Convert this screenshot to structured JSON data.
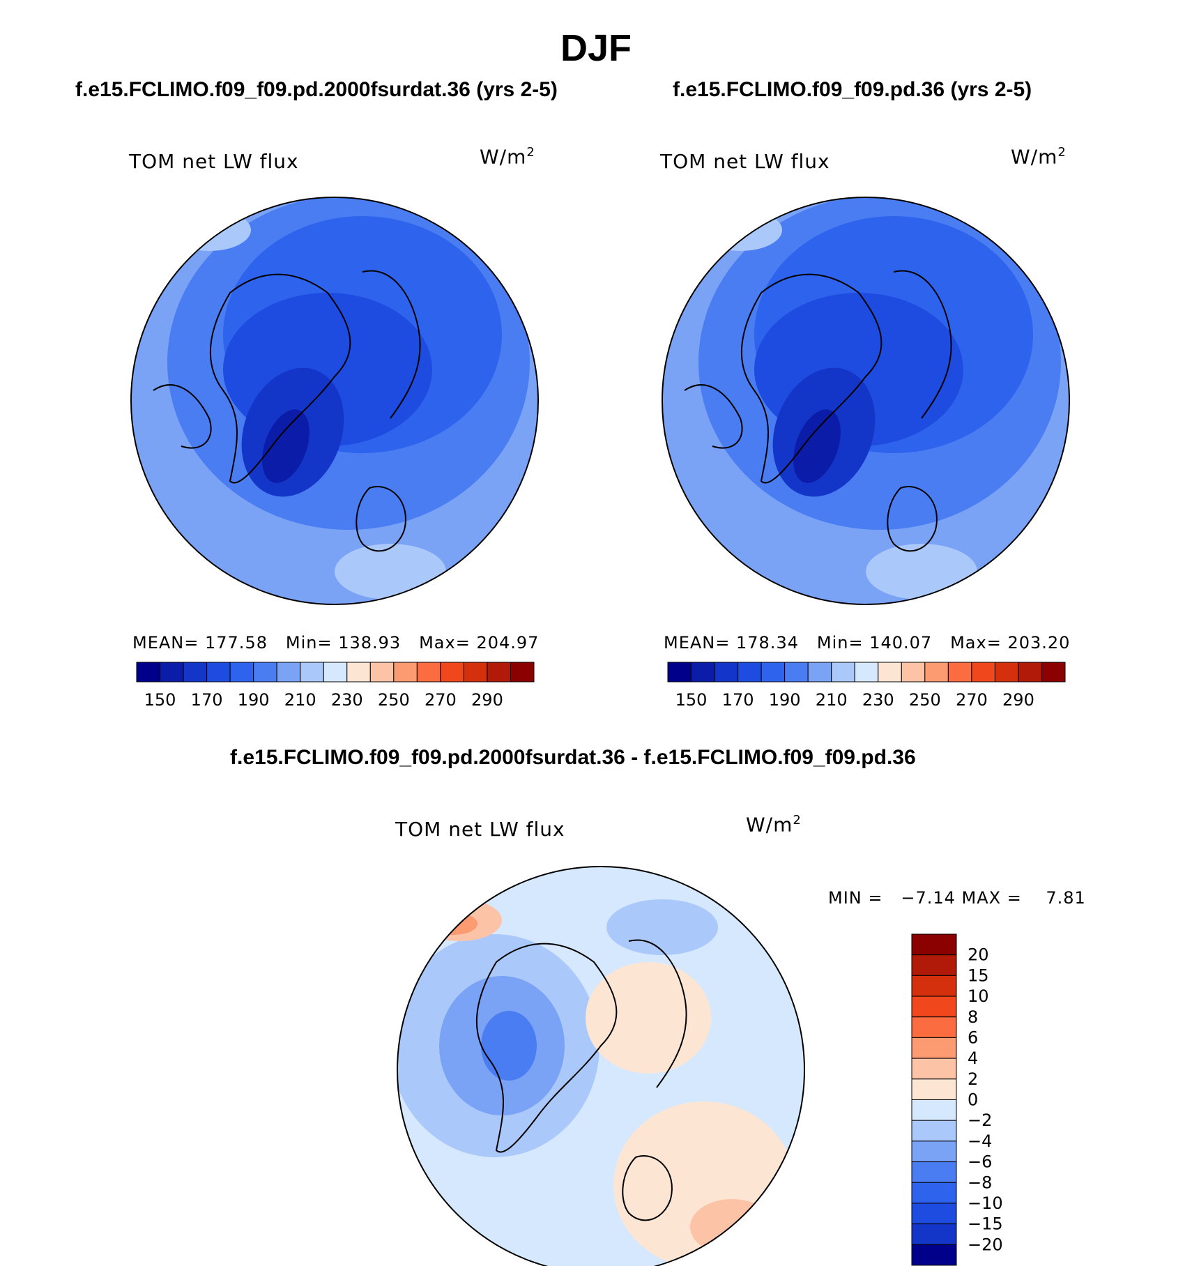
{
  "page": {
    "title": "DJF"
  },
  "panels": [
    {
      "title": "f.e15.FCLIMO.f09_f09.pd.2000fsurdat.36 (yrs 2-5)",
      "variable": "TOM net LW flux",
      "units_base": "W/m",
      "units_exp": "2",
      "stats": {
        "mean_label": "MEAN=",
        "mean": "177.58",
        "min_label": "Min=",
        "min": "138.93",
        "max_label": "Max=",
        "max": "204.97"
      }
    },
    {
      "title": "f.e15.FCLIMO.f09_f09.pd.36 (yrs 2-5)",
      "variable": "TOM net LW flux",
      "units_base": "W/m",
      "units_exp": "2",
      "stats": {
        "mean_label": "MEAN=",
        "mean": "178.34",
        "min_label": "Min=",
        "min": "140.07",
        "max_label": "Max=",
        "max": "203.20"
      }
    }
  ],
  "diff_panel": {
    "title": "f.e15.FCLIMO.f09_f09.pd.2000fsurdat.36 - f.e15.FCLIMO.f09_f09.pd.36",
    "variable": "TOM net LW flux",
    "units_base": "W/m",
    "units_exp": "2",
    "minmax": "MIN =   −7.14 MAX =    7.81"
  },
  "chart_data": [
    {
      "type": "heatmap",
      "projection": "north polar stereographic",
      "title": "f.e15.FCLIMO.f09_f09.pd.2000fsurdat.36 (yrs 2-5)",
      "variable": "TOM net LW flux",
      "units": "W/m2",
      "mean": 177.58,
      "min": 138.93,
      "max": 204.97,
      "colorbar": {
        "orientation": "horizontal",
        "levels": [
          140,
          150,
          160,
          170,
          180,
          190,
          200,
          210,
          220,
          230,
          240,
          250,
          260,
          270,
          280,
          290,
          300
        ],
        "tick_labels": [
          "150",
          "170",
          "190",
          "210",
          "230",
          "250",
          "270",
          "290"
        ],
        "colors": [
          "#00008b",
          "#0a1ca8",
          "#1436c8",
          "#1e4be0",
          "#2e63ee",
          "#4a7df2",
          "#7aa3f6",
          "#aac8fa",
          "#d6e8fd",
          "#fde5d3",
          "#fcc3a6",
          "#fc9a72",
          "#fb6d40",
          "#f0481c",
          "#d5300e",
          "#b11a08",
          "#8b0000"
        ]
      }
    },
    {
      "type": "heatmap",
      "projection": "north polar stereographic",
      "title": "f.e15.FCLIMO.f09_f09.pd.36 (yrs 2-5)",
      "variable": "TOM net LW flux",
      "units": "W/m2",
      "mean": 178.34,
      "min": 140.07,
      "max": 203.2,
      "colorbar": {
        "orientation": "horizontal",
        "levels": [
          140,
          150,
          160,
          170,
          180,
          190,
          200,
          210,
          220,
          230,
          240,
          250,
          260,
          270,
          280,
          290,
          300
        ],
        "tick_labels": [
          "150",
          "170",
          "190",
          "210",
          "230",
          "250",
          "270",
          "290"
        ],
        "colors": [
          "#00008b",
          "#0a1ca8",
          "#1436c8",
          "#1e4be0",
          "#2e63ee",
          "#4a7df2",
          "#7aa3f6",
          "#aac8fa",
          "#d6e8fd",
          "#fde5d3",
          "#fcc3a6",
          "#fc9a72",
          "#fb6d40",
          "#f0481c",
          "#d5300e",
          "#b11a08",
          "#8b0000"
        ]
      }
    },
    {
      "type": "heatmap",
      "projection": "north polar stereographic",
      "title": "f.e15.FCLIMO.f09_f09.pd.2000fsurdat.36 - f.e15.FCLIMO.f09_f09.pd.36",
      "variable": "TOM net LW flux",
      "units": "W/m2",
      "min": -7.14,
      "max": 7.81,
      "colorbar": {
        "orientation": "vertical",
        "tick_labels": [
          "20",
          "15",
          "10",
          "8",
          "6",
          "4",
          "2",
          "0",
          "−2",
          "−4",
          "−6",
          "−8",
          "−10",
          "−15",
          "−20"
        ],
        "colors": [
          "#8b0000",
          "#b11a08",
          "#d5300e",
          "#f0481c",
          "#fb6d40",
          "#fc9a72",
          "#fcc3a6",
          "#fde5d3",
          "#d6e8fd",
          "#aac8fa",
          "#7aa3f6",
          "#4a7df2",
          "#2e63ee",
          "#1e4be0",
          "#1436c8",
          "#00008b"
        ]
      }
    }
  ]
}
